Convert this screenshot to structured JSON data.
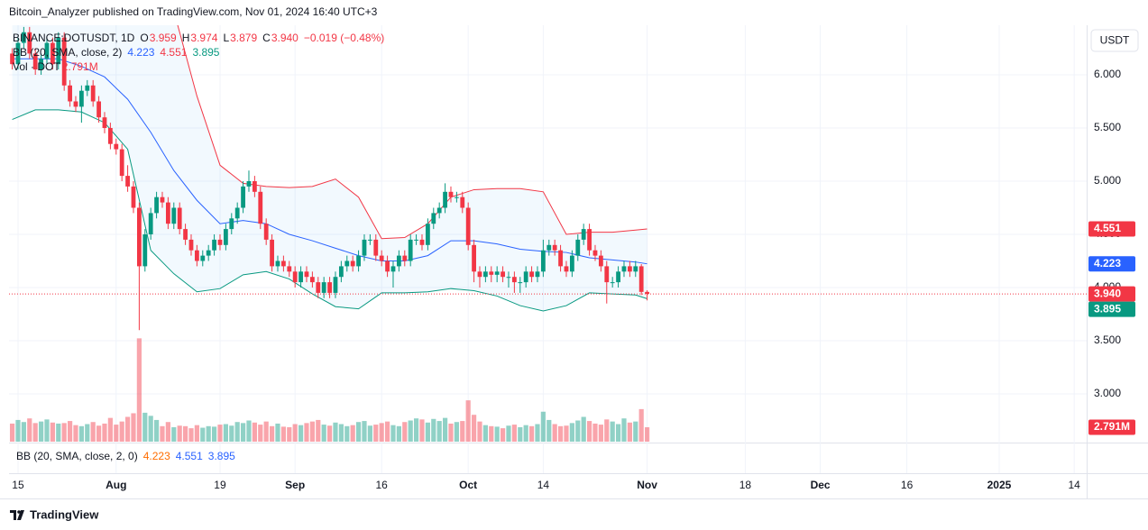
{
  "header": {
    "publisher": "Bitcoin_Analyzer published on TradingView.com, Nov 01, 2024 16:40 UTC+3"
  },
  "footer": {
    "brand": "TradingView"
  },
  "chart_data": {
    "type": "candlestick",
    "currency": "USDT",
    "ohlc_legend": [
      "BINANCE:DOTUSDT, 1D",
      "O",
      "3.959",
      "H",
      "3.974",
      "L",
      "3.879",
      "C",
      "3.940",
      "−0.019 (−0.48%)"
    ],
    "bb_legend": [
      "BB (20, SMA, close, 2)",
      "4.223",
      "4.551",
      "3.895"
    ],
    "vol_legend": [
      "Vol · DOT",
      "2.791M"
    ],
    "pane_legend": [
      "BB (20, SMA, close, 2, 0)",
      "4.223",
      "4.551",
      "3.895"
    ],
    "up_color": "#089981",
    "down_color": "#f23645",
    "grid": true,
    "xlim": [
      -1.56,
      185.16
    ],
    "xticks": [
      {
        "value": 0,
        "label": "15"
      },
      {
        "value": 17,
        "label": "Aug"
      },
      {
        "value": 35,
        "label": "19"
      },
      {
        "value": 48,
        "label": "Sep"
      },
      {
        "value": 63,
        "label": "16"
      },
      {
        "value": 78,
        "label": "Oct"
      },
      {
        "value": 91,
        "label": "14"
      },
      {
        "value": 109,
        "label": "Nov"
      },
      {
        "value": 126,
        "label": "18"
      },
      {
        "value": 139,
        "label": "Dec"
      },
      {
        "value": 154,
        "label": "16"
      },
      {
        "value": 170,
        "label": "2025"
      },
      {
        "value": 183,
        "label": "14"
      }
    ],
    "ylim": [
      2.551,
      6.466
    ],
    "yticks": [
      {
        "value": 3,
        "label": "3.000"
      },
      {
        "value": 3.5,
        "label": "3.500"
      },
      {
        "value": 4,
        "label": "4.000"
      },
      {
        "value": 4.5,
        "label": "4.500"
      },
      {
        "value": 5,
        "label": "5.000"
      },
      {
        "value": 5.5,
        "label": "5.500"
      },
      {
        "value": 6,
        "label": "6.000"
      }
    ],
    "vlim": [
      0,
      80.6
    ],
    "x": [
      -1,
      0,
      1,
      2,
      3,
      4,
      5,
      6,
      7,
      8,
      9,
      10,
      11,
      12,
      13,
      14,
      15,
      16,
      17,
      18,
      19,
      20,
      21,
      22,
      23,
      24,
      25,
      26,
      27,
      28,
      29,
      30,
      31,
      32,
      33,
      34,
      35,
      36,
      37,
      38,
      39,
      40,
      41,
      42,
      43,
      44,
      45,
      46,
      47,
      48,
      49,
      50,
      51,
      52,
      53,
      54,
      55,
      56,
      57,
      58,
      59,
      60,
      61,
      62,
      63,
      64,
      65,
      66,
      67,
      68,
      69,
      70,
      71,
      72,
      73,
      74,
      75,
      76,
      77,
      78,
      79,
      80,
      81,
      82,
      83,
      84,
      85,
      86,
      87,
      88,
      89,
      90,
      91,
      92,
      93,
      94,
      95,
      96,
      97,
      98,
      99,
      100,
      101,
      102,
      103,
      104,
      105,
      106,
      107,
      108,
      109
    ],
    "candles": [
      [
        6.2,
        6.25,
        6.05,
        6.1
      ],
      [
        6.1,
        6.35,
        6.05,
        6.3
      ],
      [
        6.3,
        6.45,
        6.25,
        6.4
      ],
      [
        6.4,
        6.45,
        6.15,
        6.2
      ],
      [
        6.2,
        6.25,
        6.0,
        6.05
      ],
      [
        6.05,
        6.2,
        6.0,
        6.15
      ],
      [
        6.15,
        6.35,
        6.1,
        6.3
      ],
      [
        6.3,
        6.35,
        6.05,
        6.1
      ],
      [
        6.1,
        6.4,
        6.05,
        6.35
      ],
      [
        6.35,
        6.4,
        5.85,
        5.9
      ],
      [
        5.9,
        5.95,
        5.7,
        5.75
      ],
      [
        5.75,
        5.8,
        5.65,
        5.7
      ],
      [
        5.7,
        5.9,
        5.55,
        5.85
      ],
      [
        5.85,
        5.95,
        5.8,
        5.9
      ],
      [
        5.9,
        5.95,
        5.7,
        5.75
      ],
      [
        5.75,
        5.8,
        5.55,
        5.6
      ],
      [
        5.6,
        5.65,
        5.45,
        5.5
      ],
      [
        5.5,
        5.55,
        5.3,
        5.35
      ],
      [
        5.35,
        5.4,
        5.25,
        5.3
      ],
      [
        5.3,
        5.35,
        5.0,
        5.05
      ],
      [
        5.05,
        5.15,
        4.9,
        4.95
      ],
      [
        4.95,
        5.0,
        4.7,
        4.75
      ],
      [
        4.75,
        4.8,
        3.6,
        4.2
      ],
      [
        4.2,
        4.55,
        4.15,
        4.5
      ],
      [
        4.5,
        4.75,
        4.45,
        4.7
      ],
      [
        4.7,
        4.9,
        4.65,
        4.85
      ],
      [
        4.85,
        4.9,
        4.75,
        4.8
      ],
      [
        4.8,
        4.85,
        4.55,
        4.6
      ],
      [
        4.6,
        4.8,
        4.55,
        4.75
      ],
      [
        4.75,
        4.8,
        4.5,
        4.55
      ],
      [
        4.55,
        4.6,
        4.4,
        4.45
      ],
      [
        4.45,
        4.5,
        4.3,
        4.35
      ],
      [
        4.35,
        4.4,
        4.2,
        4.25
      ],
      [
        4.25,
        4.35,
        4.2,
        4.3
      ],
      [
        4.3,
        4.4,
        4.25,
        4.35
      ],
      [
        4.35,
        4.5,
        4.3,
        4.45
      ],
      [
        4.45,
        4.5,
        4.35,
        4.4
      ],
      [
        4.4,
        4.6,
        4.35,
        4.55
      ],
      [
        4.55,
        4.7,
        4.5,
        4.65
      ],
      [
        4.65,
        4.8,
        4.6,
        4.75
      ],
      [
        4.75,
        5.0,
        4.7,
        4.95
      ],
      [
        4.95,
        5.1,
        4.9,
        5.0
      ],
      [
        5.0,
        5.05,
        4.85,
        4.9
      ],
      [
        4.9,
        4.95,
        4.55,
        4.6
      ],
      [
        4.6,
        4.65,
        4.4,
        4.45
      ],
      [
        4.45,
        4.5,
        4.15,
        4.2
      ],
      [
        4.2,
        4.3,
        4.15,
        4.25
      ],
      [
        4.25,
        4.3,
        4.15,
        4.2
      ],
      [
        4.2,
        4.25,
        4.1,
        4.15
      ],
      [
        4.15,
        4.2,
        4.0,
        4.05
      ],
      [
        4.05,
        4.2,
        4.0,
        4.15
      ],
      [
        4.15,
        4.2,
        4.05,
        4.1
      ],
      [
        4.1,
        4.15,
        4.0,
        4.05
      ],
      [
        4.05,
        4.1,
        3.9,
        3.95
      ],
      [
        3.95,
        4.1,
        3.9,
        4.05
      ],
      [
        4.05,
        4.1,
        3.9,
        3.95
      ],
      [
        3.95,
        4.15,
        3.9,
        4.1
      ],
      [
        4.1,
        4.25,
        4.05,
        4.2
      ],
      [
        4.2,
        4.3,
        4.15,
        4.25
      ],
      [
        4.25,
        4.3,
        4.15,
        4.2
      ],
      [
        4.2,
        4.35,
        4.15,
        4.3
      ],
      [
        4.3,
        4.5,
        4.25,
        4.45
      ],
      [
        4.45,
        4.5,
        4.4,
        4.45
      ],
      [
        4.45,
        4.5,
        4.25,
        4.3
      ],
      [
        4.3,
        4.35,
        4.2,
        4.25
      ],
      [
        4.25,
        4.3,
        4.1,
        4.15
      ],
      [
        4.15,
        4.25,
        4.0,
        4.2
      ],
      [
        4.2,
        4.35,
        4.15,
        4.3
      ],
      [
        4.3,
        4.35,
        4.2,
        4.25
      ],
      [
        4.25,
        4.5,
        4.2,
        4.45
      ],
      [
        4.45,
        4.5,
        4.4,
        4.45
      ],
      [
        4.45,
        4.5,
        4.35,
        4.4
      ],
      [
        4.4,
        4.65,
        4.35,
        4.6
      ],
      [
        4.6,
        4.75,
        4.55,
        4.7
      ],
      [
        4.7,
        4.8,
        4.65,
        4.75
      ],
      [
        4.75,
        4.98,
        4.7,
        4.9
      ],
      [
        4.9,
        4.95,
        4.8,
        4.85
      ],
      [
        4.85,
        4.9,
        4.8,
        4.85
      ],
      [
        4.85,
        4.9,
        4.7,
        4.75
      ],
      [
        4.75,
        4.8,
        4.35,
        4.4
      ],
      [
        4.4,
        4.45,
        4.05,
        4.15
      ],
      [
        4.15,
        4.2,
        4.0,
        4.1
      ],
      [
        4.1,
        4.2,
        4.05,
        4.15
      ],
      [
        4.15,
        4.2,
        4.05,
        4.12
      ],
      [
        4.12,
        4.2,
        4.05,
        4.15
      ],
      [
        4.15,
        4.2,
        4.05,
        4.1
      ],
      [
        4.1,
        4.15,
        4.0,
        4.1
      ],
      [
        4.1,
        4.15,
        3.95,
        4.05
      ],
      [
        4.05,
        4.1,
        3.95,
        4.05
      ],
      [
        4.05,
        4.2,
        4.0,
        4.15
      ],
      [
        4.15,
        4.2,
        4.05,
        4.1
      ],
      [
        4.1,
        4.2,
        4.05,
        4.15
      ],
      [
        4.15,
        4.45,
        4.1,
        4.35
      ],
      [
        4.35,
        4.45,
        4.3,
        4.4
      ],
      [
        4.4,
        4.45,
        4.3,
        4.35
      ],
      [
        4.35,
        4.4,
        4.15,
        4.2
      ],
      [
        4.2,
        4.25,
        4.1,
        4.15
      ],
      [
        4.15,
        4.35,
        4.1,
        4.3
      ],
      [
        4.3,
        4.5,
        4.25,
        4.45
      ],
      [
        4.45,
        4.6,
        4.4,
        4.55
      ],
      [
        4.55,
        4.6,
        4.3,
        4.35
      ],
      [
        4.35,
        4.4,
        4.25,
        4.3
      ],
      [
        4.3,
        4.35,
        4.15,
        4.2
      ],
      [
        4.2,
        4.25,
        3.85,
        4.05
      ],
      [
        4.05,
        4.1,
        4.0,
        4.05
      ],
      [
        4.05,
        4.2,
        4.0,
        4.15
      ],
      [
        4.15,
        4.25,
        4.1,
        4.2
      ],
      [
        4.2,
        4.25,
        4.1,
        4.15
      ],
      [
        4.15,
        4.25,
        4.1,
        4.2
      ],
      [
        4.2,
        4.22,
        3.93,
        3.959
      ],
      [
        3.959,
        3.974,
        3.879,
        3.94
      ]
    ],
    "volume": [
      3.5,
      4.2,
      3.8,
      4.5,
      3.6,
      3.9,
      4.3,
      3.7,
      3.5,
      3.6,
      4.0,
      3.2,
      3.0,
      3.4,
      3.8,
      3.1,
      3.5,
      4.6,
      3.3,
      3.9,
      4.8,
      5.5,
      20.0,
      5.6,
      5.0,
      4.2,
      3.0,
      3.8,
      2.8,
      3.1,
      3.0,
      2.6,
      3.2,
      2.7,
      3.0,
      2.9,
      3.3,
      3.4,
      3.1,
      3.8,
      3.6,
      4.1,
      3.7,
      3.3,
      3.9,
      3.0,
      3.5,
      2.9,
      2.8,
      3.4,
      3.2,
      3.6,
      3.9,
      4.2,
      3.3,
      3.1,
      3.7,
      3.4,
      3.0,
      3.2,
      3.8,
      4.0,
      3.1,
      3.3,
      3.6,
      3.9,
      3.2,
      3.0,
      3.8,
      4.1,
      4.5,
      4.3,
      3.7,
      4.4,
      4.0,
      4.6,
      3.5,
      3.8,
      4.0,
      8.0,
      5.2,
      3.9,
      3.2,
      3.0,
      2.9,
      2.6,
      3.1,
      3.3,
      2.8,
      3.2,
      3.0,
      3.4,
      5.8,
      4.2,
      3.4,
      3.0,
      3.1,
      3.6,
      4.1,
      4.8,
      4.0,
      3.5,
      3.3,
      4.3,
      3.9,
      3.4,
      4.5,
      3.7,
      3.9,
      6.3,
      2.791
    ],
    "bands": {
      "x": [
        -1,
        3,
        7,
        11,
        15,
        19,
        23,
        27,
        31,
        35,
        39,
        43,
        47,
        51,
        55,
        59,
        63,
        67,
        71,
        75,
        79,
        83,
        87,
        91,
        95,
        99,
        103,
        107,
        109
      ],
      "basis": [
        6.15,
        6.15,
        6.15,
        6.08,
        5.98,
        5.77,
        5.46,
        5.1,
        4.82,
        4.6,
        4.63,
        4.6,
        4.5,
        4.44,
        4.37,
        4.3,
        4.25,
        4.25,
        4.3,
        4.44,
        4.44,
        4.41,
        4.36,
        4.34,
        4.33,
        4.28,
        4.26,
        4.24,
        4.223
      ],
      "upper": [
        6.8,
        6.8,
        6.8,
        6.8,
        6.9,
        7.0,
        7.0,
        6.6,
        5.8,
        5.15,
        4.98,
        4.95,
        4.94,
        4.95,
        5.02,
        4.85,
        4.46,
        4.47,
        4.6,
        4.85,
        4.92,
        4.93,
        4.93,
        4.9,
        4.5,
        4.52,
        4.52,
        4.54,
        4.551
      ],
      "lower": [
        5.58,
        5.67,
        5.67,
        5.65,
        5.55,
        5.3,
        4.35,
        4.13,
        3.96,
        3.99,
        4.12,
        4.15,
        4.08,
        3.94,
        3.82,
        3.8,
        3.95,
        3.95,
        3.96,
        3.99,
        3.97,
        3.92,
        3.83,
        3.78,
        3.83,
        3.95,
        3.94,
        3.93,
        3.895
      ],
      "basis_color": "#2962ff",
      "upper_color": "#f23645",
      "lower_color": "#089981",
      "fill": "#2196f3"
    },
    "price_badges": [
      {
        "value": 4.551,
        "label": "4.551",
        "color": "#f23645"
      },
      {
        "value": 4.223,
        "label": "4.223",
        "color": "#2962ff"
      },
      {
        "value": 3.94,
        "label": "3.940",
        "color": "#f23645"
      },
      {
        "value": 3.895,
        "label": "3.895",
        "color": "#089981"
      }
    ],
    "volume_badge": {
      "value": 2.791,
      "label": "2.791M",
      "color": "#f23645"
    },
    "last_price_line": 3.94
  }
}
